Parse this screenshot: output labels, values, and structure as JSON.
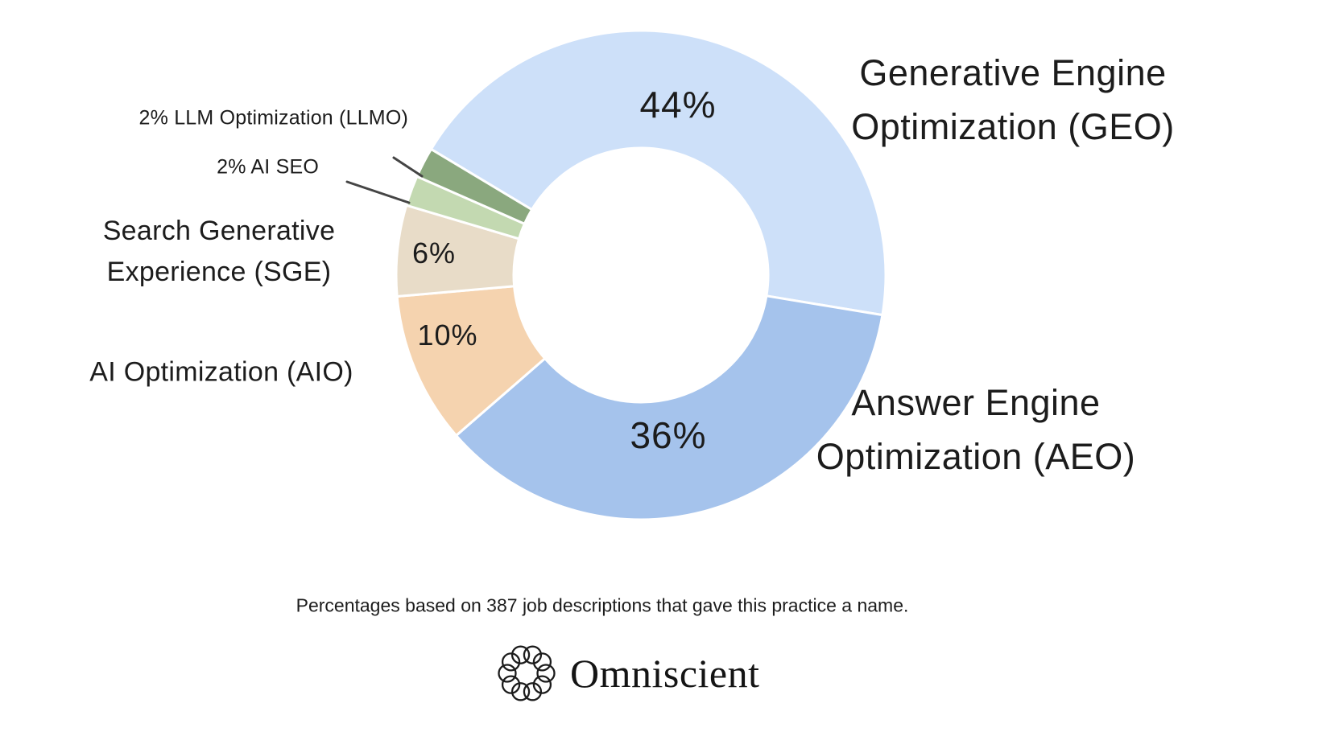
{
  "chart_data": {
    "type": "pie",
    "subtype": "donut",
    "unit": "%",
    "direction": "clockwise",
    "start_angle_deg": -59,
    "slices": [
      {
        "label": "Generative Engine Optimization (GEO)",
        "value": 44,
        "pct_label": "44%",
        "color": "#cde0f9"
      },
      {
        "label": "Answer Engine Optimization (AEO)",
        "value": 36,
        "pct_label": "36%",
        "color": "#a5c3ec"
      },
      {
        "label": "AI Optimization (AIO)",
        "value": 10,
        "pct_label": "10%",
        "color": "#f5d3af"
      },
      {
        "label": "Search Generative Experience (SGE)",
        "value": 6,
        "pct_label": "6%",
        "color": "#e8dcc8"
      },
      {
        "label": "AI SEO",
        "value": 2,
        "pct_label": "2%",
        "color": "#c3d9b1"
      },
      {
        "label": "LLM Optimization (LLMO)",
        "value": 2,
        "pct_label": "2%",
        "color": "#8aa87e"
      }
    ],
    "footnote": "Percentages based on 387 job descriptions that gave this practice a name.",
    "legend_position": "labels-around-chart",
    "grid": false
  },
  "display_labels": {
    "geo_line1": "Generative Engine",
    "geo_line2": "Optimization (GEO)",
    "aeo_line1": "Answer Engine",
    "aeo_line2": "Optimization (AEO)",
    "sge_line1": "Search Generative",
    "sge_line2": "Experience (SGE)",
    "aio": "AI Optimization (AIO)",
    "llmo": "2% LLM Optimization (LLMO)",
    "ai_seo": "2% AI SEO"
  },
  "footer": {
    "brand": "Omniscient"
  },
  "colors": {
    "background": "#ffffff",
    "text": "#1c1c1c",
    "leader_line": "#454545",
    "slice_gap": "#ffffff"
  }
}
